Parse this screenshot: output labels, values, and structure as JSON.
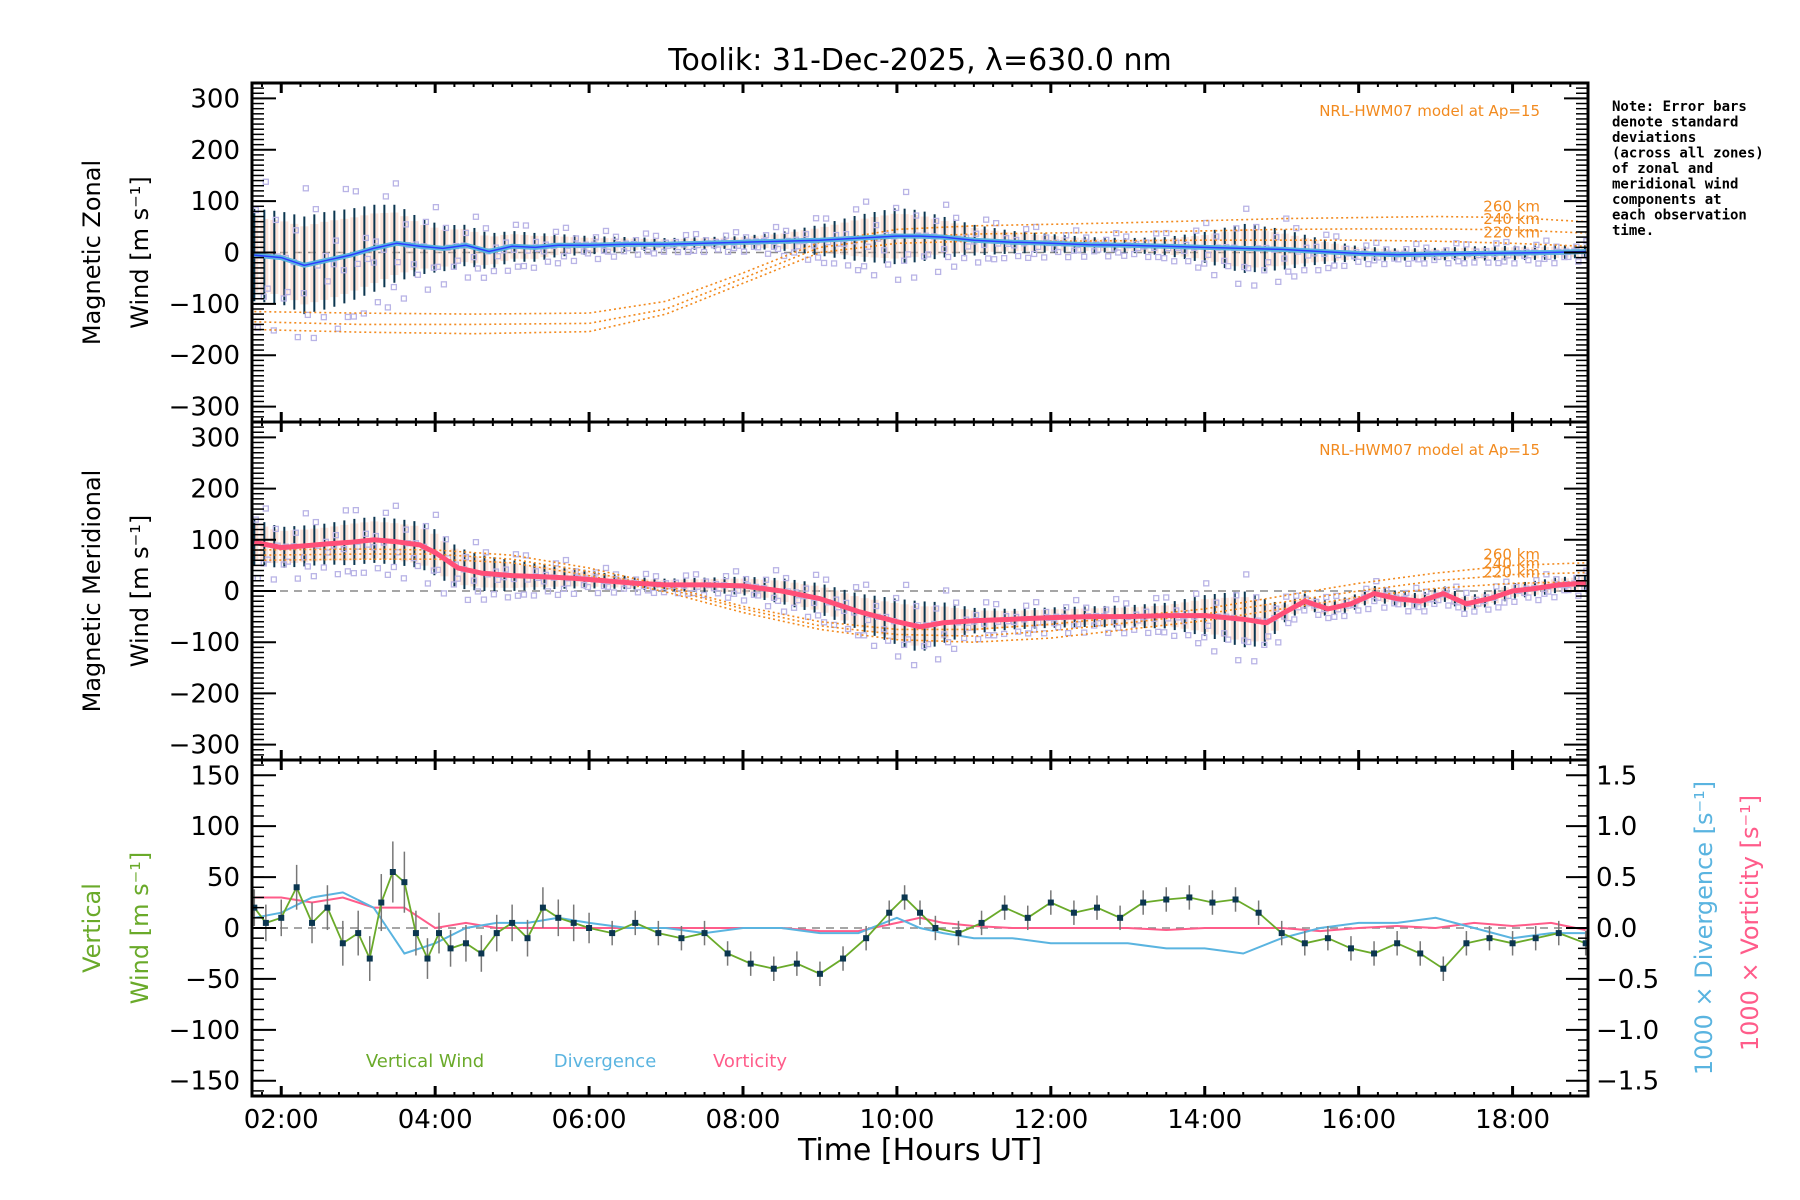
{
  "chart_data": {
    "type": "line",
    "title": "Toolik: 31-Dec-2025, λ=630.0 nm",
    "xlabel": "Time [Hours UT]",
    "x_range_hours": [
      1.62,
      18.98
    ],
    "x_ticks": [
      {
        "hour": 2,
        "label": "02:00"
      },
      {
        "hour": 4,
        "label": "04:00"
      },
      {
        "hour": 6,
        "label": "06:00"
      },
      {
        "hour": 8,
        "label": "08:00"
      },
      {
        "hour": 10,
        "label": "10:00"
      },
      {
        "hour": 12,
        "label": "12:00"
      },
      {
        "hour": 14,
        "label": "14:00"
      },
      {
        "hour": 16,
        "label": "16:00"
      },
      {
        "hour": 18,
        "label": "18:00"
      }
    ],
    "note": [
      "Note: Error bars",
      "denote standard",
      "deviations",
      "(across all zones)",
      "of zonal and",
      "meridional wind",
      "components at",
      "each observation",
      "time."
    ],
    "colors": {
      "zonal": "#5ab4e0",
      "zonal_dark": "#2a3cff",
      "meridional": "#ff4f78",
      "model": "#f28a1e",
      "scatter": "#b9b4e6",
      "errorbar": "#0b3650",
      "vertical": "#6aaa2a",
      "divergence": "#5ab4e0",
      "vorticity": "#ff5c8a",
      "vz_err": "#777777"
    },
    "panels": [
      {
        "name": "zonal",
        "ylabel_line1": "Magnetic Zonal",
        "ylabel_line2": "Wind [m s⁻¹]",
        "ylim": [
          -330,
          330
        ],
        "yticks": [
          300,
          200,
          100,
          0,
          -100,
          -200,
          -300
        ],
        "ytick_labels": [
          "300",
          "200",
          "100",
          "0",
          "−100",
          "−200",
          "−300"
        ],
        "model_text": "NRL-HWM07 model at Ap=15",
        "series": {
          "name": "Magnetic Zonal Wind",
          "x": [
            1.65,
            2.0,
            2.3,
            2.6,
            2.9,
            3.2,
            3.5,
            3.8,
            4.1,
            4.4,
            4.7,
            5.0,
            5.3,
            5.6,
            6.0,
            6.5,
            7.0,
            7.5,
            8.0,
            8.5,
            9.0,
            9.5,
            10.0,
            10.3,
            10.6,
            11.0,
            11.5,
            12.0,
            12.5,
            13.0,
            13.5,
            14.0,
            14.5,
            15.0,
            15.5,
            16.0,
            16.5,
            17.0,
            17.5,
            18.0,
            18.5,
            18.95
          ],
          "y": [
            -5,
            -10,
            -25,
            -15,
            -5,
            8,
            18,
            12,
            8,
            14,
            2,
            12,
            10,
            14,
            14,
            16,
            16,
            18,
            20,
            22,
            24,
            28,
            32,
            32,
            30,
            24,
            20,
            18,
            15,
            14,
            12,
            10,
            8,
            6,
            2,
            -2,
            -4,
            -3,
            -2,
            -1,
            0,
            2
          ],
          "sd": [
            90,
            90,
            95,
            95,
            90,
            85,
            75,
            55,
            45,
            40,
            35,
            30,
            28,
            22,
            18,
            14,
            12,
            12,
            12,
            18,
            30,
            45,
            55,
            50,
            40,
            30,
            22,
            18,
            15,
            14,
            18,
            30,
            48,
            40,
            25,
            14,
            12,
            12,
            14,
            14,
            14,
            12
          ]
        },
        "model": [
          {
            "label": "260 km",
            "x": [
              1.65,
              3,
              4.5,
              6,
              7,
              8,
              9,
              10,
              11,
              12,
              13,
              14,
              15,
              16,
              17,
              18,
              18.95
            ],
            "y": [
              -115,
              -118,
              -120,
              -118,
              -95,
              -40,
              20,
              45,
              52,
              55,
              58,
              62,
              66,
              68,
              70,
              68,
              60
            ]
          },
          {
            "label": "240 km",
            "x": [
              1.65,
              3,
              4.5,
              6,
              7,
              8,
              9,
              10,
              11,
              12,
              13,
              14,
              15,
              16,
              17,
              18,
              18.95
            ],
            "y": [
              -135,
              -140,
              -140,
              -138,
              -110,
              -50,
              10,
              30,
              36,
              38,
              40,
              42,
              45,
              46,
              46,
              44,
              38
            ]
          },
          {
            "label": "220 km",
            "x": [
              1.65,
              3,
              4.5,
              6,
              7,
              8,
              9,
              10,
              11,
              12,
              13,
              14,
              15,
              16,
              17,
              18,
              18.95
            ],
            "y": [
              -150,
              -155,
              -158,
              -154,
              -120,
              -60,
              0,
              18,
              22,
              22,
              23,
              24,
              24,
              24,
              22,
              18,
              12
            ]
          }
        ]
      },
      {
        "name": "meridional",
        "ylabel_line1": "Magnetic Meridional",
        "ylabel_line2": "Wind [m s⁻¹]",
        "ylim": [
          -330,
          330
        ],
        "yticks": [
          300,
          200,
          100,
          0,
          -100,
          -200,
          -300
        ],
        "ytick_labels": [
          "300",
          "200",
          "100",
          "0",
          "−100",
          "−200",
          "−300"
        ],
        "model_text": "NRL-HWM07 model at Ap=15",
        "series": {
          "name": "Magnetic Meridional Wind",
          "x": [
            1.65,
            2.0,
            2.3,
            2.6,
            2.9,
            3.2,
            3.5,
            3.8,
            4.0,
            4.3,
            4.6,
            5.0,
            5.4,
            5.8,
            6.2,
            6.6,
            7.0,
            7.5,
            8.0,
            8.5,
            9.0,
            9.5,
            10.0,
            10.3,
            10.6,
            11.0,
            11.5,
            12.0,
            12.5,
            13.0,
            13.5,
            14.0,
            14.5,
            14.8,
            15.0,
            15.3,
            15.6,
            15.9,
            16.2,
            16.5,
            16.8,
            17.1,
            17.4,
            17.7,
            18.0,
            18.3,
            18.6,
            18.95
          ],
          "y": [
            95,
            85,
            88,
            92,
            95,
            100,
            96,
            90,
            75,
            45,
            35,
            30,
            28,
            25,
            20,
            15,
            12,
            12,
            10,
            0,
            -15,
            -40,
            -60,
            -70,
            -62,
            -58,
            -55,
            -52,
            -50,
            -50,
            -48,
            -48,
            -55,
            -62,
            -45,
            -20,
            -35,
            -25,
            -5,
            -15,
            -20,
            -5,
            -25,
            -15,
            0,
            5,
            12,
            15
          ],
          "sd": [
            45,
            40,
            40,
            40,
            45,
            45,
            45,
            45,
            45,
            40,
            35,
            30,
            25,
            20,
            15,
            12,
            12,
            14,
            18,
            25,
            30,
            35,
            45,
            50,
            40,
            25,
            20,
            20,
            20,
            22,
            25,
            40,
            55,
            45,
            20,
            15,
            15,
            15,
            15,
            15,
            15,
            15,
            15,
            15,
            15,
            15,
            15,
            15
          ]
        },
        "model": [
          {
            "label": "260 km",
            "x": [
              1.65,
              3,
              4,
              5,
              6,
              7,
              8,
              9,
              10,
              11,
              12,
              13,
              14,
              15,
              16,
              17,
              18,
              18.95
            ],
            "y": [
              80,
              82,
              80,
              70,
              45,
              10,
              -30,
              -60,
              -75,
              -75,
              -65,
              -50,
              -35,
              -10,
              15,
              35,
              50,
              55
            ]
          },
          {
            "label": "240 km",
            "x": [
              1.65,
              3,
              4,
              5,
              6,
              7,
              8,
              9,
              10,
              11,
              12,
              13,
              14,
              15,
              16,
              17,
              18,
              18.95
            ],
            "y": [
              70,
              72,
              72,
              62,
              38,
              5,
              -35,
              -68,
              -85,
              -88,
              -78,
              -62,
              -45,
              -22,
              0,
              20,
              32,
              36
            ]
          },
          {
            "label": "220 km",
            "x": [
              1.65,
              3,
              4,
              5,
              6,
              7,
              8,
              9,
              10,
              11,
              12,
              13,
              14,
              15,
              16,
              17,
              18,
              18.95
            ],
            "y": [
              60,
              62,
              62,
              55,
              30,
              -2,
              -42,
              -75,
              -95,
              -100,
              -92,
              -75,
              -58,
              -35,
              -12,
              5,
              15,
              18
            ]
          }
        ]
      },
      {
        "name": "vertical",
        "ylabel_line1": "Vertical",
        "ylabel_line2": "Wind [m s⁻¹]",
        "ylim": [
          -165,
          165
        ],
        "yticks": [
          150,
          100,
          50,
          0,
          -50,
          -100,
          -150
        ],
        "ytick_labels": [
          "150",
          "100",
          "50",
          "0",
          "−50",
          "−100",
          "−150"
        ],
        "y2lim": [
          -1.65,
          1.65
        ],
        "y2ticks": [
          1.5,
          1.0,
          0.5,
          0.0,
          -0.5,
          -1.0,
          -1.5
        ],
        "y2tick_labels": [
          "1.5",
          "1.0",
          "0.5",
          "0.0",
          "−0.5",
          "−1.0",
          "−1.5"
        ],
        "y2label_divergence": "1000 × Divergence [s⁻¹]",
        "y2label_vorticity": "1000 × Vorticity [s⁻¹]",
        "legend": [
          "Vertical Wind",
          "Divergence",
          "Vorticity"
        ],
        "vertical_wind": {
          "x": [
            1.65,
            1.8,
            2.0,
            2.2,
            2.4,
            2.6,
            2.8,
            3.0,
            3.15,
            3.3,
            3.45,
            3.6,
            3.75,
            3.9,
            4.05,
            4.2,
            4.4,
            4.6,
            4.8,
            5.0,
            5.2,
            5.4,
            5.6,
            5.8,
            6.0,
            6.3,
            6.6,
            6.9,
            7.2,
            7.5,
            7.8,
            8.1,
            8.4,
            8.7,
            9.0,
            9.3,
            9.6,
            9.9,
            10.1,
            10.3,
            10.5,
            10.8,
            11.1,
            11.4,
            11.7,
            12.0,
            12.3,
            12.6,
            12.9,
            13.2,
            13.5,
            13.8,
            14.1,
            14.4,
            14.7,
            15.0,
            15.3,
            15.6,
            15.9,
            16.2,
            16.5,
            16.8,
            17.1,
            17.4,
            17.7,
            18.0,
            18.3,
            18.6,
            18.95
          ],
          "y": [
            20,
            5,
            10,
            40,
            5,
            20,
            -15,
            -5,
            -30,
            25,
            55,
            45,
            -5,
            -30,
            -5,
            -20,
            -15,
            -25,
            -5,
            5,
            -10,
            20,
            10,
            5,
            0,
            -5,
            5,
            -5,
            -10,
            -5,
            -25,
            -35,
            -40,
            -35,
            -45,
            -30,
            -10,
            15,
            30,
            15,
            0,
            -5,
            5,
            20,
            10,
            25,
            15,
            20,
            10,
            25,
            28,
            30,
            25,
            28,
            15,
            -5,
            -15,
            -10,
            -20,
            -25,
            -15,
            -25,
            -40,
            -15,
            -10,
            -15,
            -10,
            -5,
            -15
          ],
          "err": [
            18,
            18,
            18,
            22,
            20,
            22,
            22,
            22,
            22,
            28,
            30,
            30,
            22,
            20,
            20,
            18,
            18,
            18,
            18,
            18,
            18,
            20,
            18,
            18,
            15,
            12,
            12,
            12,
            12,
            12,
            12,
            12,
            12,
            12,
            12,
            12,
            12,
            12,
            12,
            12,
            12,
            12,
            12,
            12,
            12,
            12,
            12,
            12,
            12,
            12,
            12,
            12,
            12,
            12,
            12,
            12,
            12,
            12,
            12,
            12,
            12,
            12,
            12,
            12,
            12,
            12,
            12,
            12,
            12
          ]
        },
        "divergence": {
          "x": [
            1.65,
            2.0,
            2.4,
            2.8,
            3.2,
            3.6,
            4.0,
            4.4,
            4.8,
            5.2,
            5.6,
            6.0,
            6.5,
            7.0,
            7.5,
            8.0,
            8.5,
            9.0,
            9.5,
            10.0,
            10.3,
            10.6,
            11.0,
            11.5,
            12.0,
            12.5,
            13.0,
            13.5,
            14.0,
            14.5,
            15.0,
            15.5,
            16.0,
            16.5,
            17.0,
            17.5,
            18.0,
            18.5,
            18.95
          ],
          "y": [
            0.1,
            0.15,
            0.3,
            0.35,
            0.2,
            -0.25,
            -0.15,
            0.0,
            0.05,
            0.05,
            0.1,
            0.05,
            0.0,
            0.0,
            -0.05,
            0.0,
            0.0,
            -0.05,
            -0.05,
            0.1,
            0.0,
            -0.05,
            -0.1,
            -0.1,
            -0.15,
            -0.15,
            -0.15,
            -0.2,
            -0.2,
            -0.25,
            -0.1,
            0.0,
            0.05,
            0.05,
            0.1,
            0.0,
            -0.1,
            -0.05,
            -0.05
          ]
        },
        "vorticity": {
          "x": [
            1.65,
            2.0,
            2.4,
            2.8,
            3.2,
            3.6,
            4.0,
            4.4,
            4.8,
            5.2,
            5.6,
            6.0,
            6.5,
            7.0,
            7.5,
            8.0,
            8.5,
            9.0,
            9.5,
            10.0,
            10.3,
            10.6,
            11.0,
            11.5,
            12.0,
            12.5,
            13.0,
            13.5,
            14.0,
            14.5,
            15.0,
            15.5,
            16.0,
            16.5,
            17.0,
            17.5,
            18.0,
            18.5,
            18.95
          ],
          "y": [
            0.3,
            0.3,
            0.25,
            0.3,
            0.2,
            0.2,
            0.0,
            0.05,
            0.0,
            0.0,
            0.0,
            0.0,
            0.0,
            0.0,
            0.0,
            0.0,
            0.0,
            -0.03,
            -0.03,
            0.05,
            0.1,
            0.05,
            0.02,
            0.0,
            0.0,
            0.0,
            0.0,
            -0.02,
            0.0,
            0.0,
            0.0,
            -0.03,
            0.0,
            0.02,
            0.0,
            0.05,
            0.02,
            0.05,
            -0.02
          ]
        }
      }
    ]
  }
}
